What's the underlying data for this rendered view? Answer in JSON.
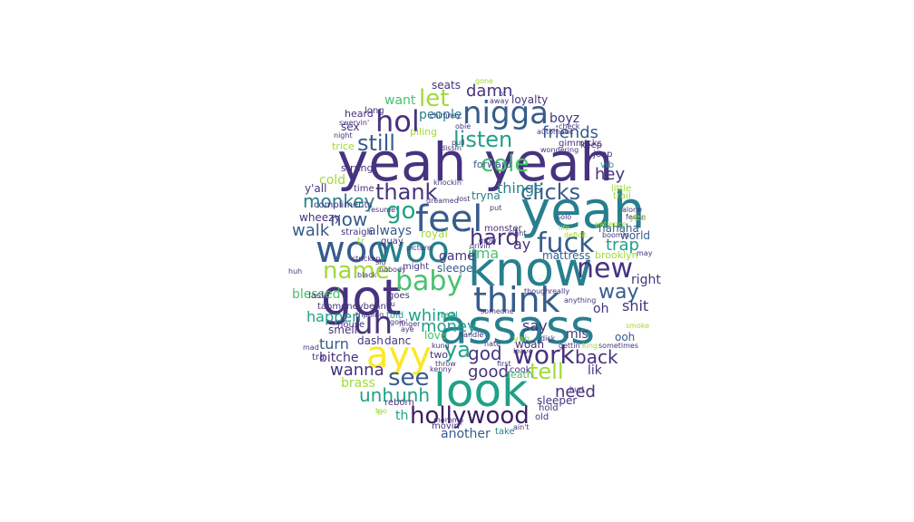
{
  "palette": {
    "c0": "#3b1e63",
    "c1": "#46337e",
    "c2": "#365c8d",
    "c3": "#277f8e",
    "c4": "#1fa187",
    "c5": "#4ac16d",
    "c6": "#a0da39",
    "c7": "#fde725"
  },
  "words": {
    "w1": {
      "text": "yeah",
      "color": "c1"
    },
    "w2": {
      "text": "yeah",
      "color": "c1"
    },
    "w3": {
      "text": "yeah",
      "color": "c3"
    },
    "w4": {
      "text": "know",
      "color": "c3"
    },
    "w5": {
      "text": "ass",
      "color": "c3"
    },
    "w6": {
      "text": "ass",
      "color": "c3"
    },
    "w7": {
      "text": "got",
      "color": "c1"
    },
    "w8": {
      "text": "look",
      "color": "c4"
    },
    "w9": {
      "text": "woo",
      "color": "c2"
    },
    "w10": {
      "text": "woo",
      "color": "c3"
    },
    "w11": {
      "text": "feel",
      "color": "c2"
    },
    "w12": {
      "text": "nigga",
      "color": "c2"
    },
    "w13": {
      "text": "think",
      "color": "c2"
    },
    "w14": {
      "text": "ayy",
      "color": "c7"
    },
    "w15": {
      "text": "fuck",
      "color": "c2"
    },
    "w16": {
      "text": "hollywood",
      "color": "c0"
    },
    "w17": {
      "text": "hol",
      "color": "c1"
    },
    "w18": {
      "text": "uh",
      "color": "c1"
    },
    "w19": {
      "text": "baby",
      "color": "c5"
    },
    "w20": {
      "text": "name",
      "color": "c6"
    },
    "w21": {
      "text": "work",
      "color": "c1"
    },
    "w22": {
      "text": "new",
      "color": "c1"
    },
    "w23": {
      "text": "listen",
      "color": "c4"
    },
    "w24": {
      "text": "still",
      "color": "c2"
    },
    "w25": {
      "text": "clicks",
      "color": "c2"
    },
    "w26": {
      "text": "thank",
      "color": "c1"
    },
    "w27": {
      "text": "let",
      "color": "c6"
    },
    "w28": {
      "text": "go",
      "color": "c4"
    },
    "w29": {
      "text": "cole",
      "color": "c5"
    },
    "w30": {
      "text": "hard",
      "color": "c1"
    },
    "w31": {
      "text": "see",
      "color": "c2"
    },
    "w32": {
      "text": "tell",
      "color": "c6"
    },
    "w33": {
      "text": "unh",
      "color": "c4"
    },
    "w34": {
      "text": "unh",
      "color": "c4"
    },
    "w35": {
      "text": "now",
      "color": "c2"
    },
    "w36": {
      "text": "monkey",
      "color": "c3"
    },
    "w37": {
      "text": "way",
      "color": "c2"
    },
    "w38": {
      "text": "god",
      "color": "c1"
    },
    "w39": {
      "text": "back",
      "color": "c1"
    },
    "w40": {
      "text": "friends",
      "color": "c2"
    },
    "w41": {
      "text": "hey",
      "color": "c1"
    },
    "w42": {
      "text": "damn",
      "color": "c1"
    },
    "w43": {
      "text": "walk",
      "color": "c2"
    },
    "w44": {
      "text": "trap",
      "color": "c4"
    },
    "w45": {
      "text": "money",
      "color": "c4"
    },
    "w46": {
      "text": "wanna",
      "color": "c1"
    },
    "w47": {
      "text": "need",
      "color": "c1"
    },
    "w48": {
      "text": "good",
      "color": "c1"
    },
    "w49": {
      "text": "ya",
      "color": "c4"
    },
    "w50": {
      "text": "whine",
      "color": "c4"
    },
    "w51": {
      "text": "i'ma",
      "color": "c5"
    },
    "w52": {
      "text": "things",
      "color": "c3"
    },
    "w53": {
      "text": "ay",
      "color": "c1"
    },
    "w54": {
      "text": "say",
      "color": "c1"
    },
    "w55": {
      "text": "happen",
      "color": "c4"
    },
    "w56": {
      "text": "turn",
      "color": "c2"
    },
    "w57": {
      "text": "shit",
      "color": "c1"
    },
    "w58": {
      "text": "right",
      "color": "c1"
    },
    "w59": {
      "text": "oh",
      "color": "c1"
    },
    "w60": {
      "text": "mis",
      "color": "c1"
    },
    "w61": {
      "text": "lik",
      "color": "c1"
    },
    "w62": {
      "text": "game",
      "color": "c1"
    },
    "w63": {
      "text": "want",
      "color": "c5"
    },
    "w64": {
      "text": "people",
      "color": "c3"
    },
    "w65": {
      "text": "boyz",
      "color": "c1"
    },
    "w66": {
      "text": "always",
      "color": "c2"
    },
    "w67": {
      "text": "cold",
      "color": "c6"
    },
    "w68": {
      "text": "y'all",
      "color": "c1"
    },
    "w69": {
      "text": "wheezy",
      "color": "c1"
    },
    "w70": {
      "text": "bitche",
      "color": "c1"
    },
    "w71": {
      "text": "brass",
      "color": "c6"
    },
    "w72": {
      "text": "th",
      "color": "c4"
    },
    "w73": {
      "text": "another",
      "color": "c2"
    },
    "w74": {
      "text": "sleeper",
      "color": "c1"
    },
    "w75": {
      "text": "blessed",
      "color": "c5"
    },
    "w76": {
      "text": "love",
      "color": "c5"
    },
    "w77": {
      "text": "mattress",
      "color": "c2"
    },
    "w78": {
      "text": "sex",
      "color": "c1"
    },
    "w79": {
      "text": "seats",
      "color": "c1"
    },
    "w80": {
      "text": "loyalty",
      "color": "c1"
    },
    "w81": {
      "text": "royal",
      "color": "c6"
    },
    "w82": {
      "text": "sleepe",
      "color": "c2"
    },
    "w83": {
      "text": "smell",
      "color": "c1"
    },
    "w84": {
      "text": "dash",
      "color": "c1"
    },
    "w85": {
      "text": "danc",
      "color": "c1"
    },
    "w86": {
      "text": "woah",
      "color": "c1"
    },
    "w87": {
      "text": "ooh",
      "color": "c2"
    },
    "w88": {
      "text": "hahaha",
      "color": "c2"
    },
    "w89": {
      "text": "world",
      "color": "c2"
    },
    "w90": {
      "text": "brooklyn",
      "color": "c6"
    },
    "w91": {
      "text": "tryna",
      "color": "c3"
    },
    "w92": {
      "text": "forward",
      "color": "c2"
    },
    "w93": {
      "text": "heard",
      "color": "c1"
    },
    "w94": {
      "text": "strung",
      "color": "c1"
    },
    "w95": {
      "text": "long",
      "color": "c1"
    },
    "w96": {
      "text": "trice",
      "color": "c6"
    },
    "w97": {
      "text": "piling",
      "color": "c6"
    },
    "w98": {
      "text": "gimmicks",
      "color": "c1"
    },
    "w99": {
      "text": "keep",
      "color": "c1"
    },
    "w100": {
      "text": "jeep",
      "color": "c1"
    },
    "w101": {
      "text": "vib",
      "color": "c4"
    },
    "w102": {
      "text": "trail",
      "color": "c6"
    },
    "w103": {
      "text": "little",
      "color": "c6"
    },
    "w104": {
      "text": "time",
      "color": "c1"
    },
    "w105": {
      "text": "compliments",
      "color": "c1"
    },
    "w106": {
      "text": "straigh",
      "color": "c1"
    },
    "w107": {
      "text": "quay",
      "color": "c1"
    },
    "w108": {
      "text": "tr",
      "color": "c6"
    },
    "w109": {
      "text": "might",
      "color": "c1"
    },
    "w110": {
      "text": "monster",
      "color": "c1"
    },
    "w111": {
      "text": "real",
      "color": "c4"
    },
    "w112": {
      "text": "told",
      "color": "c4"
    },
    "w113": {
      "text": "goes",
      "color": "c1"
    },
    "w114": {
      "text": "house",
      "color": "c1"
    },
    "w115": {
      "text": "last",
      "color": "c1"
    },
    "w116": {
      "text": "tra",
      "color": "c1"
    },
    "w117": {
      "text": "death",
      "color": "c5"
    },
    "w118": {
      "text": "cook",
      "color": "c1"
    },
    "w119": {
      "text": "yah",
      "color": "c6"
    },
    "w120": {
      "text": "hold",
      "color": "c1"
    },
    "w121": {
      "text": "old",
      "color": "c1"
    },
    "w122": {
      "text": "take",
      "color": "c3"
    },
    "w123": {
      "text": "movin'",
      "color": "c1"
    },
    "w124": {
      "text": "reborn",
      "color": "c1"
    },
    "w125": {
      "text": "tr",
      "color": "c6"
    },
    "w126": {
      "text": "two",
      "color": "c1"
    },
    "w127": {
      "text": "kenny",
      "color": "c1"
    },
    "w128": {
      "text": "throw",
      "color": "c1"
    },
    "w129": {
      "text": "kung",
      "color": "c1"
    },
    "w130": {
      "text": "handle",
      "color": "c1"
    },
    "w131": {
      "text": "someone",
      "color": "c1"
    },
    "w132": {
      "text": "nate",
      "color": "c1"
    },
    "w133": {
      "text": "dick",
      "color": "c1"
    },
    "w134": {
      "text": "leave",
      "color": "c1"
    },
    "w135": {
      "text": "first",
      "color": "c1"
    },
    "w136": {
      "text": "gettin'",
      "color": "c1"
    },
    "w137": {
      "text": "eight",
      "color": "c1"
    },
    "w138": {
      "text": "life",
      "color": "c6"
    },
    "w139": {
      "text": "deficit",
      "color": "c6"
    },
    "w140": {
      "text": "patience",
      "color": "c6"
    },
    "w141": {
      "text": "boomin",
      "color": "c1"
    },
    "w142": {
      "text": "alone",
      "color": "c1"
    },
    "w143": {
      "text": "feelin",
      "color": "c1"
    },
    "w144": {
      "text": "yea",
      "color": "c6"
    },
    "w145": {
      "text": "may",
      "color": "c1"
    },
    "w146": {
      "text": "picture",
      "color": "c1"
    },
    "w147": {
      "text": "solo",
      "color": "c1"
    },
    "w148": {
      "text": "resume",
      "color": "c1"
    },
    "w149": {
      "text": "put",
      "color": "c1"
    },
    "w150": {
      "text": "grow",
      "color": "c1"
    },
    "w151": {
      "text": "drivin'",
      "color": "c1"
    },
    "w152": {
      "text": "dreamed",
      "color": "c1"
    },
    "w153": {
      "text": "lost",
      "color": "c1"
    },
    "w154": {
      "text": "knockin'",
      "color": "c1"
    },
    "w155": {
      "text": "dissin",
      "color": "c1"
    },
    "w156": {
      "text": "pull",
      "color": "c1"
    },
    "w157": {
      "text": "automatic",
      "color": "c1"
    },
    "w158": {
      "text": "check",
      "color": "c1"
    },
    "w159": {
      "text": "wondering",
      "color": "c1"
    },
    "w160": {
      "text": "away",
      "color": "c1"
    },
    "w161": {
      "text": "bt",
      "color": "c1"
    },
    "w162": {
      "text": "obie",
      "color": "c1"
    },
    "w163": {
      "text": "chimney",
      "color": "c1"
    },
    "w164": {
      "text": "night",
      "color": "c1"
    },
    "w165": {
      "text": "swervin'",
      "color": "c1"
    },
    "w166": {
      "text": "gone",
      "color": "c6"
    },
    "w167": {
      "text": "stricken",
      "color": "c1"
    },
    "w168": {
      "text": "black",
      "color": "c1"
    },
    "w169": {
      "text": "nobody",
      "color": "c1"
    },
    "w170": {
      "text": "tripping",
      "color": "c1"
    },
    "w171": {
      "text": "tapmoneybenny",
      "color": "c1"
    },
    "w172": {
      "text": "huh",
      "color": "c1"
    },
    "w173": {
      "text": "mad",
      "color": "c1"
    },
    "w174": {
      "text": "sid",
      "color": "c1"
    },
    "w175": {
      "text": "fu",
      "color": "c1"
    },
    "w176": {
      "text": "finger",
      "color": "c1"
    },
    "w177": {
      "text": "aye",
      "color": "c1"
    },
    "w178": {
      "text": "goin'",
      "color": "c1"
    },
    "w179": {
      "text": "ain't",
      "color": "c1"
    },
    "w180": {
      "text": "though",
      "color": "c1"
    },
    "w181": {
      "text": "really",
      "color": "c1"
    },
    "w182": {
      "text": "anything",
      "color": "c1"
    },
    "w183": {
      "text": "sometimes",
      "color": "c1"
    },
    "w184": {
      "text": "king",
      "color": "c6"
    },
    "w185": {
      "text": "hurt",
      "color": "c1"
    },
    "w186": {
      "text": "too",
      "color": "c6"
    },
    "w187": {
      "text": "momma",
      "color": "c1"
    },
    "w188": {
      "text": "smoke",
      "color": "c6"
    }
  }
}
